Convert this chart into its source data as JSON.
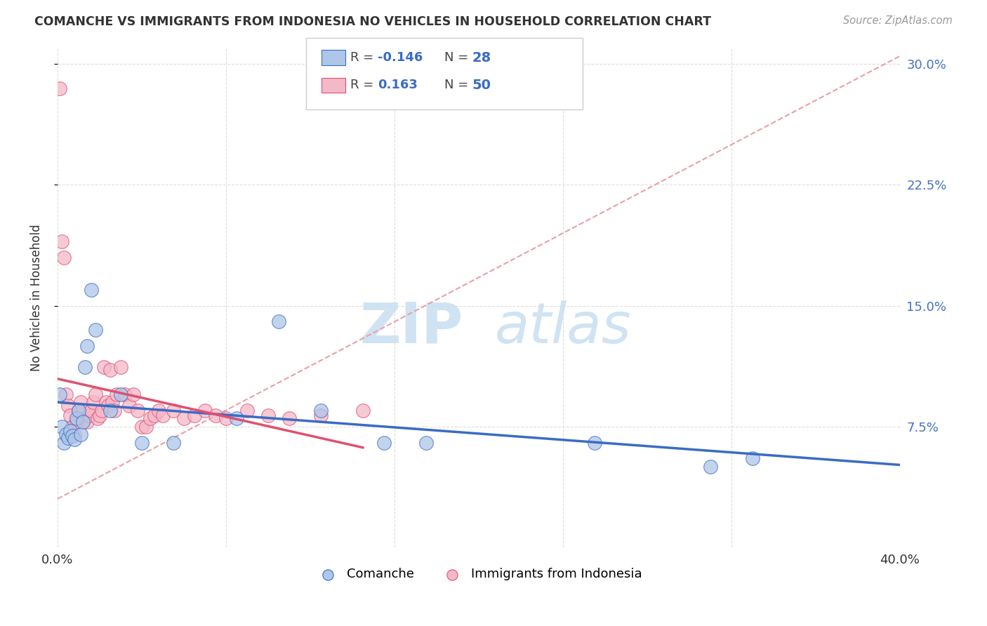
{
  "title": "COMANCHE VS IMMIGRANTS FROM INDONESIA NO VEHICLES IN HOUSEHOLD CORRELATION CHART",
  "source": "Source: ZipAtlas.com",
  "ylabel": "No Vehicles in Household",
  "xlim": [
    0.0,
    0.4
  ],
  "ylim": [
    0.0,
    0.31
  ],
  "yticks": [
    0.075,
    0.15,
    0.225,
    0.3
  ],
  "ytick_labels": [
    "7.5%",
    "15.0%",
    "22.5%",
    "30.0%"
  ],
  "xticks": [
    0.0,
    0.08,
    0.16,
    0.24,
    0.32,
    0.4
  ],
  "comanche_R": -0.146,
  "comanche_N": 28,
  "indonesia_R": 0.163,
  "indonesia_N": 50,
  "comanche_color": "#aec6e8",
  "indonesia_color": "#f4b8c8",
  "comanche_line_color": "#3a6cc4",
  "indonesia_line_color": "#e05070",
  "comanche_x": [
    0.001,
    0.002,
    0.003,
    0.004,
    0.005,
    0.006,
    0.007,
    0.008,
    0.009,
    0.01,
    0.011,
    0.012,
    0.013,
    0.014,
    0.016,
    0.018,
    0.025,
    0.03,
    0.04,
    0.055,
    0.085,
    0.105,
    0.125,
    0.155,
    0.175,
    0.255,
    0.31,
    0.33
  ],
  "comanche_y": [
    0.095,
    0.075,
    0.065,
    0.07,
    0.068,
    0.072,
    0.069,
    0.067,
    0.08,
    0.085,
    0.07,
    0.078,
    0.112,
    0.125,
    0.16,
    0.135,
    0.085,
    0.095,
    0.065,
    0.065,
    0.08,
    0.14,
    0.085,
    0.065,
    0.065,
    0.065,
    0.05,
    0.055
  ],
  "indonesia_x": [
    0.001,
    0.002,
    0.003,
    0.004,
    0.005,
    0.006,
    0.007,
    0.008,
    0.009,
    0.01,
    0.011,
    0.012,
    0.013,
    0.014,
    0.015,
    0.016,
    0.017,
    0.018,
    0.019,
    0.02,
    0.021,
    0.022,
    0.023,
    0.024,
    0.025,
    0.026,
    0.027,
    0.028,
    0.03,
    0.032,
    0.034,
    0.036,
    0.038,
    0.04,
    0.042,
    0.044,
    0.046,
    0.048,
    0.05,
    0.055,
    0.06,
    0.065,
    0.07,
    0.075,
    0.08,
    0.09,
    0.1,
    0.11,
    0.125,
    0.145
  ],
  "indonesia_y": [
    0.285,
    0.19,
    0.18,
    0.095,
    0.088,
    0.082,
    0.075,
    0.07,
    0.078,
    0.085,
    0.09,
    0.085,
    0.08,
    0.078,
    0.082,
    0.085,
    0.09,
    0.095,
    0.08,
    0.082,
    0.085,
    0.112,
    0.09,
    0.088,
    0.11,
    0.09,
    0.085,
    0.095,
    0.112,
    0.095,
    0.088,
    0.095,
    0.085,
    0.075,
    0.075,
    0.08,
    0.082,
    0.085,
    0.082,
    0.085,
    0.08,
    0.082,
    0.085,
    0.082,
    0.08,
    0.085,
    0.082,
    0.08,
    0.082,
    0.085
  ],
  "watermark_zip": "ZIP",
  "watermark_atlas": "atlas",
  "background_color": "#ffffff",
  "scatter_size": 200
}
